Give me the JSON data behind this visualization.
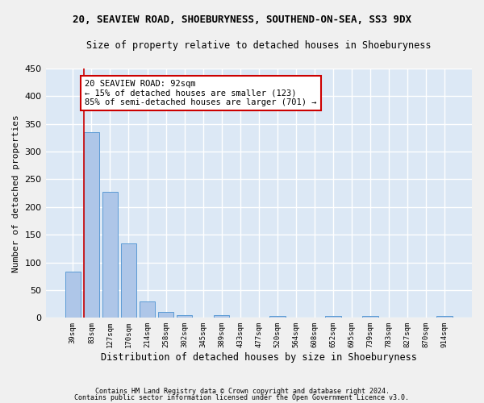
{
  "title": "20, SEAVIEW ROAD, SHOEBURYNESS, SOUTHEND-ON-SEA, SS3 9DX",
  "subtitle": "Size of property relative to detached houses in Shoeburyness",
  "xlabel": "Distribution of detached houses by size in Shoeburyness",
  "ylabel": "Number of detached properties",
  "footnote1": "Contains HM Land Registry data © Crown copyright and database right 2024.",
  "footnote2": "Contains public sector information licensed under the Open Government Licence v3.0.",
  "categories": [
    "39sqm",
    "83sqm",
    "127sqm",
    "170sqm",
    "214sqm",
    "258sqm",
    "302sqm",
    "345sqm",
    "389sqm",
    "433sqm",
    "477sqm",
    "520sqm",
    "564sqm",
    "608sqm",
    "652sqm",
    "695sqm",
    "739sqm",
    "783sqm",
    "827sqm",
    "870sqm",
    "914sqm"
  ],
  "values": [
    84,
    335,
    228,
    135,
    30,
    10,
    5,
    0,
    5,
    0,
    0,
    3,
    0,
    0,
    4,
    0,
    4,
    0,
    0,
    0,
    3
  ],
  "bar_color": "#aec6e8",
  "bar_edge_color": "#5b9bd5",
  "bg_color": "#dce8f5",
  "grid_color": "#ffffff",
  "annotation_text": "20 SEAVIEW ROAD: 92sqm\n← 15% of detached houses are smaller (123)\n85% of semi-detached houses are larger (701) →",
  "annotation_box_edge": "#cc0000",
  "annotation_box_bg": "#ffffff",
  "marker_line_color": "#cc0000",
  "ylim": [
    0,
    450
  ],
  "yticks": [
    0,
    50,
    100,
    150,
    200,
    250,
    300,
    350,
    400,
    450
  ],
  "fig_bg_color": "#f0f0f0"
}
